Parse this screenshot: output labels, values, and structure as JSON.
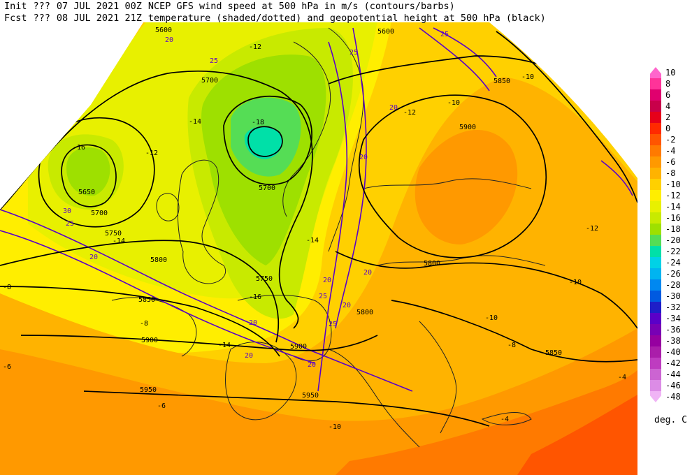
{
  "header": {
    "line1": [
      "Init",
      "???",
      "07 JUL 2021 00Z",
      "NCEP GFS wind speed at 500 hPa in m/s (contours/barbs)"
    ],
    "line2": [
      "Fcst",
      "???",
      "08 JUL 2021 21Z",
      "temperature (shaded/dotted) and geopotential height at 500 hPa (black)"
    ]
  },
  "colorbar": {
    "units": "deg. C",
    "labels": [
      "10",
      "8",
      "6",
      "4",
      "2",
      "0",
      "-2",
      "-4",
      "-6",
      "-8",
      "-10",
      "-12",
      "-14",
      "-16",
      "-18",
      "-20",
      "-22",
      "-24",
      "-26",
      "-28",
      "-30",
      "-32",
      "-34",
      "-36",
      "-38",
      "-40",
      "-42",
      "-44",
      "-46",
      "-48"
    ],
    "colors": [
      "#ff66cc",
      "#ff3399",
      "#e0006e",
      "#c8004a",
      "#e6001a",
      "#ff2a00",
      "#ff5500",
      "#ff7a00",
      "#ff9900",
      "#ffb300",
      "#ffd000",
      "#ffee00",
      "#e8f000",
      "#c8ea00",
      "#9ee000",
      "#55dd55",
      "#00e0a8",
      "#00d2e6",
      "#00b4f0",
      "#0088f0",
      "#005ae0",
      "#1e1ec8",
      "#5a00c8",
      "#7800b4",
      "#9600a0",
      "#aa1eaa",
      "#be3cc0",
      "#cc64d2",
      "#dc8ce6",
      "#f0b4f5"
    ]
  },
  "height_labels": [
    "5600",
    "5650",
    "5700",
    "5750",
    "5800",
    "5850",
    "5900",
    "5950",
    "5700",
    "5850",
    "5900",
    "5800",
    "5650",
    "5700",
    "5750",
    "5800",
    "5850",
    "5900",
    "5950",
    "5600"
  ],
  "temperature_labels": [
    "-18",
    "-16",
    "-14",
    "-12",
    "-10",
    "-8",
    "-6",
    "-4",
    "-14",
    "-12",
    "-10",
    "-14",
    "-12",
    "-10",
    "-8",
    "-8",
    "-12",
    "-10",
    "-6",
    "-4",
    "-16",
    "-14",
    "-10"
  ],
  "wind_labels": [
    "20",
    "25",
    "30",
    "25",
    "20",
    "20",
    "20",
    "25",
    "20",
    "20",
    "25",
    "25",
    "20",
    "20",
    "20",
    "20",
    "25"
  ]
}
